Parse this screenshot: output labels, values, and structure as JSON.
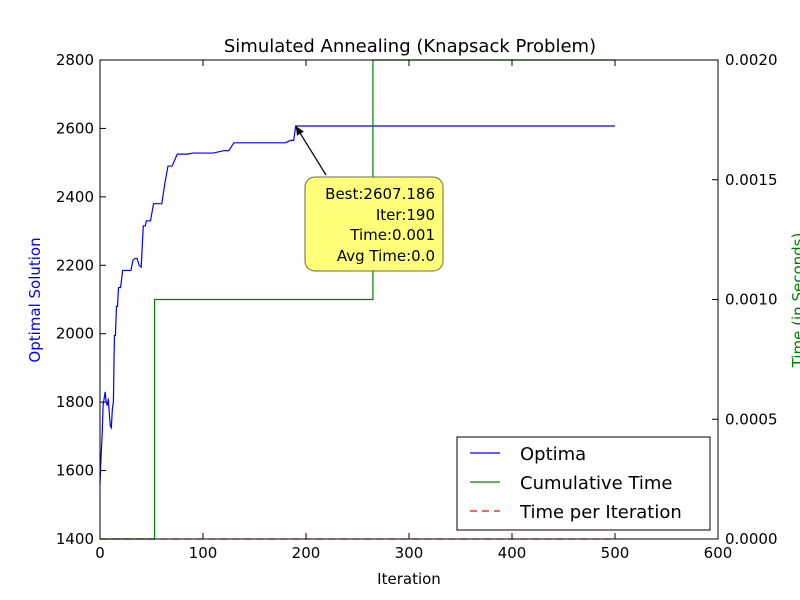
{
  "chart_data": {
    "type": "line",
    "title": "Simulated Annealing (Knapsack Problem)",
    "xlabel": "Iteration",
    "ylabel_left": "Optimal Solution",
    "ylabel_right": "Time (in Seconds)",
    "xlim": [
      0,
      600
    ],
    "ylim_left": [
      1400,
      2800
    ],
    "ylim_right": [
      0.0,
      0.002
    ],
    "x_ticks": [
      "0",
      "100",
      "200",
      "300",
      "400",
      "500",
      "600"
    ],
    "y_ticks_left": [
      "1400",
      "1600",
      "1800",
      "2000",
      "2200",
      "2400",
      "2600",
      "2800"
    ],
    "y_ticks_right": [
      "0.0000",
      "0.0005",
      "0.0010",
      "0.0015",
      "0.0020"
    ],
    "grid": false,
    "legend_position": "bottom-right",
    "colors": {
      "optima": "#0000ff",
      "cumulative": "#008000",
      "per_iter": "#ff0000",
      "label_left": "#0000ff",
      "label_right": "#008000",
      "annotation_fill": "#ffff7a"
    },
    "series": [
      {
        "name": "Optima",
        "axis": "left",
        "x": [
          0,
          1,
          2,
          3,
          4,
          5,
          6,
          7,
          8,
          9,
          10,
          11,
          12,
          13,
          14,
          15,
          16,
          17,
          18,
          19,
          20,
          22,
          24,
          26,
          28,
          30,
          32,
          34,
          36,
          38,
          40,
          42,
          43,
          44,
          45,
          47,
          49,
          52,
          55,
          57,
          60,
          63,
          66,
          70,
          75,
          80,
          85,
          90,
          95,
          100,
          110,
          120,
          125,
          130,
          140,
          150,
          160,
          170,
          180,
          185,
          188,
          190,
          200,
          300,
          400,
          500
        ],
        "y": [
          1560,
          1640,
          1700,
          1790,
          1810,
          1830,
          1800,
          1790,
          1810,
          1770,
          1730,
          1725,
          1780,
          1800,
          1995,
          1995,
          2080,
          2080,
          2135,
          2135,
          2135,
          2185,
          2185,
          2185,
          2185,
          2185,
          2215,
          2220,
          2220,
          2200,
          2195,
          2315,
          2315,
          2315,
          2330,
          2330,
          2330,
          2380,
          2380,
          2380,
          2380,
          2440,
          2490,
          2490,
          2525,
          2525,
          2525,
          2528,
          2528,
          2528,
          2528,
          2535,
          2535,
          2558,
          2558,
          2558,
          2558,
          2558,
          2558,
          2565,
          2565,
          2607,
          2607,
          2607,
          2607,
          2607
        ]
      },
      {
        "name": "Cumulative Time",
        "axis": "right",
        "x": [
          0,
          53,
          53,
          265,
          265,
          500
        ],
        "y": [
          0.0,
          0.0,
          0.001,
          0.001,
          0.002,
          0.002
        ]
      },
      {
        "name": "Time per Iteration",
        "axis": "right",
        "x": [
          0,
          500
        ],
        "y": [
          0.0,
          0.0
        ]
      }
    ],
    "annotation": {
      "target_x": 190,
      "target_y": 2607.186,
      "lines": [
        "Best:2607.186",
        "Iter:190",
        "Time:0.001",
        "Avg Time:0.0"
      ]
    }
  }
}
